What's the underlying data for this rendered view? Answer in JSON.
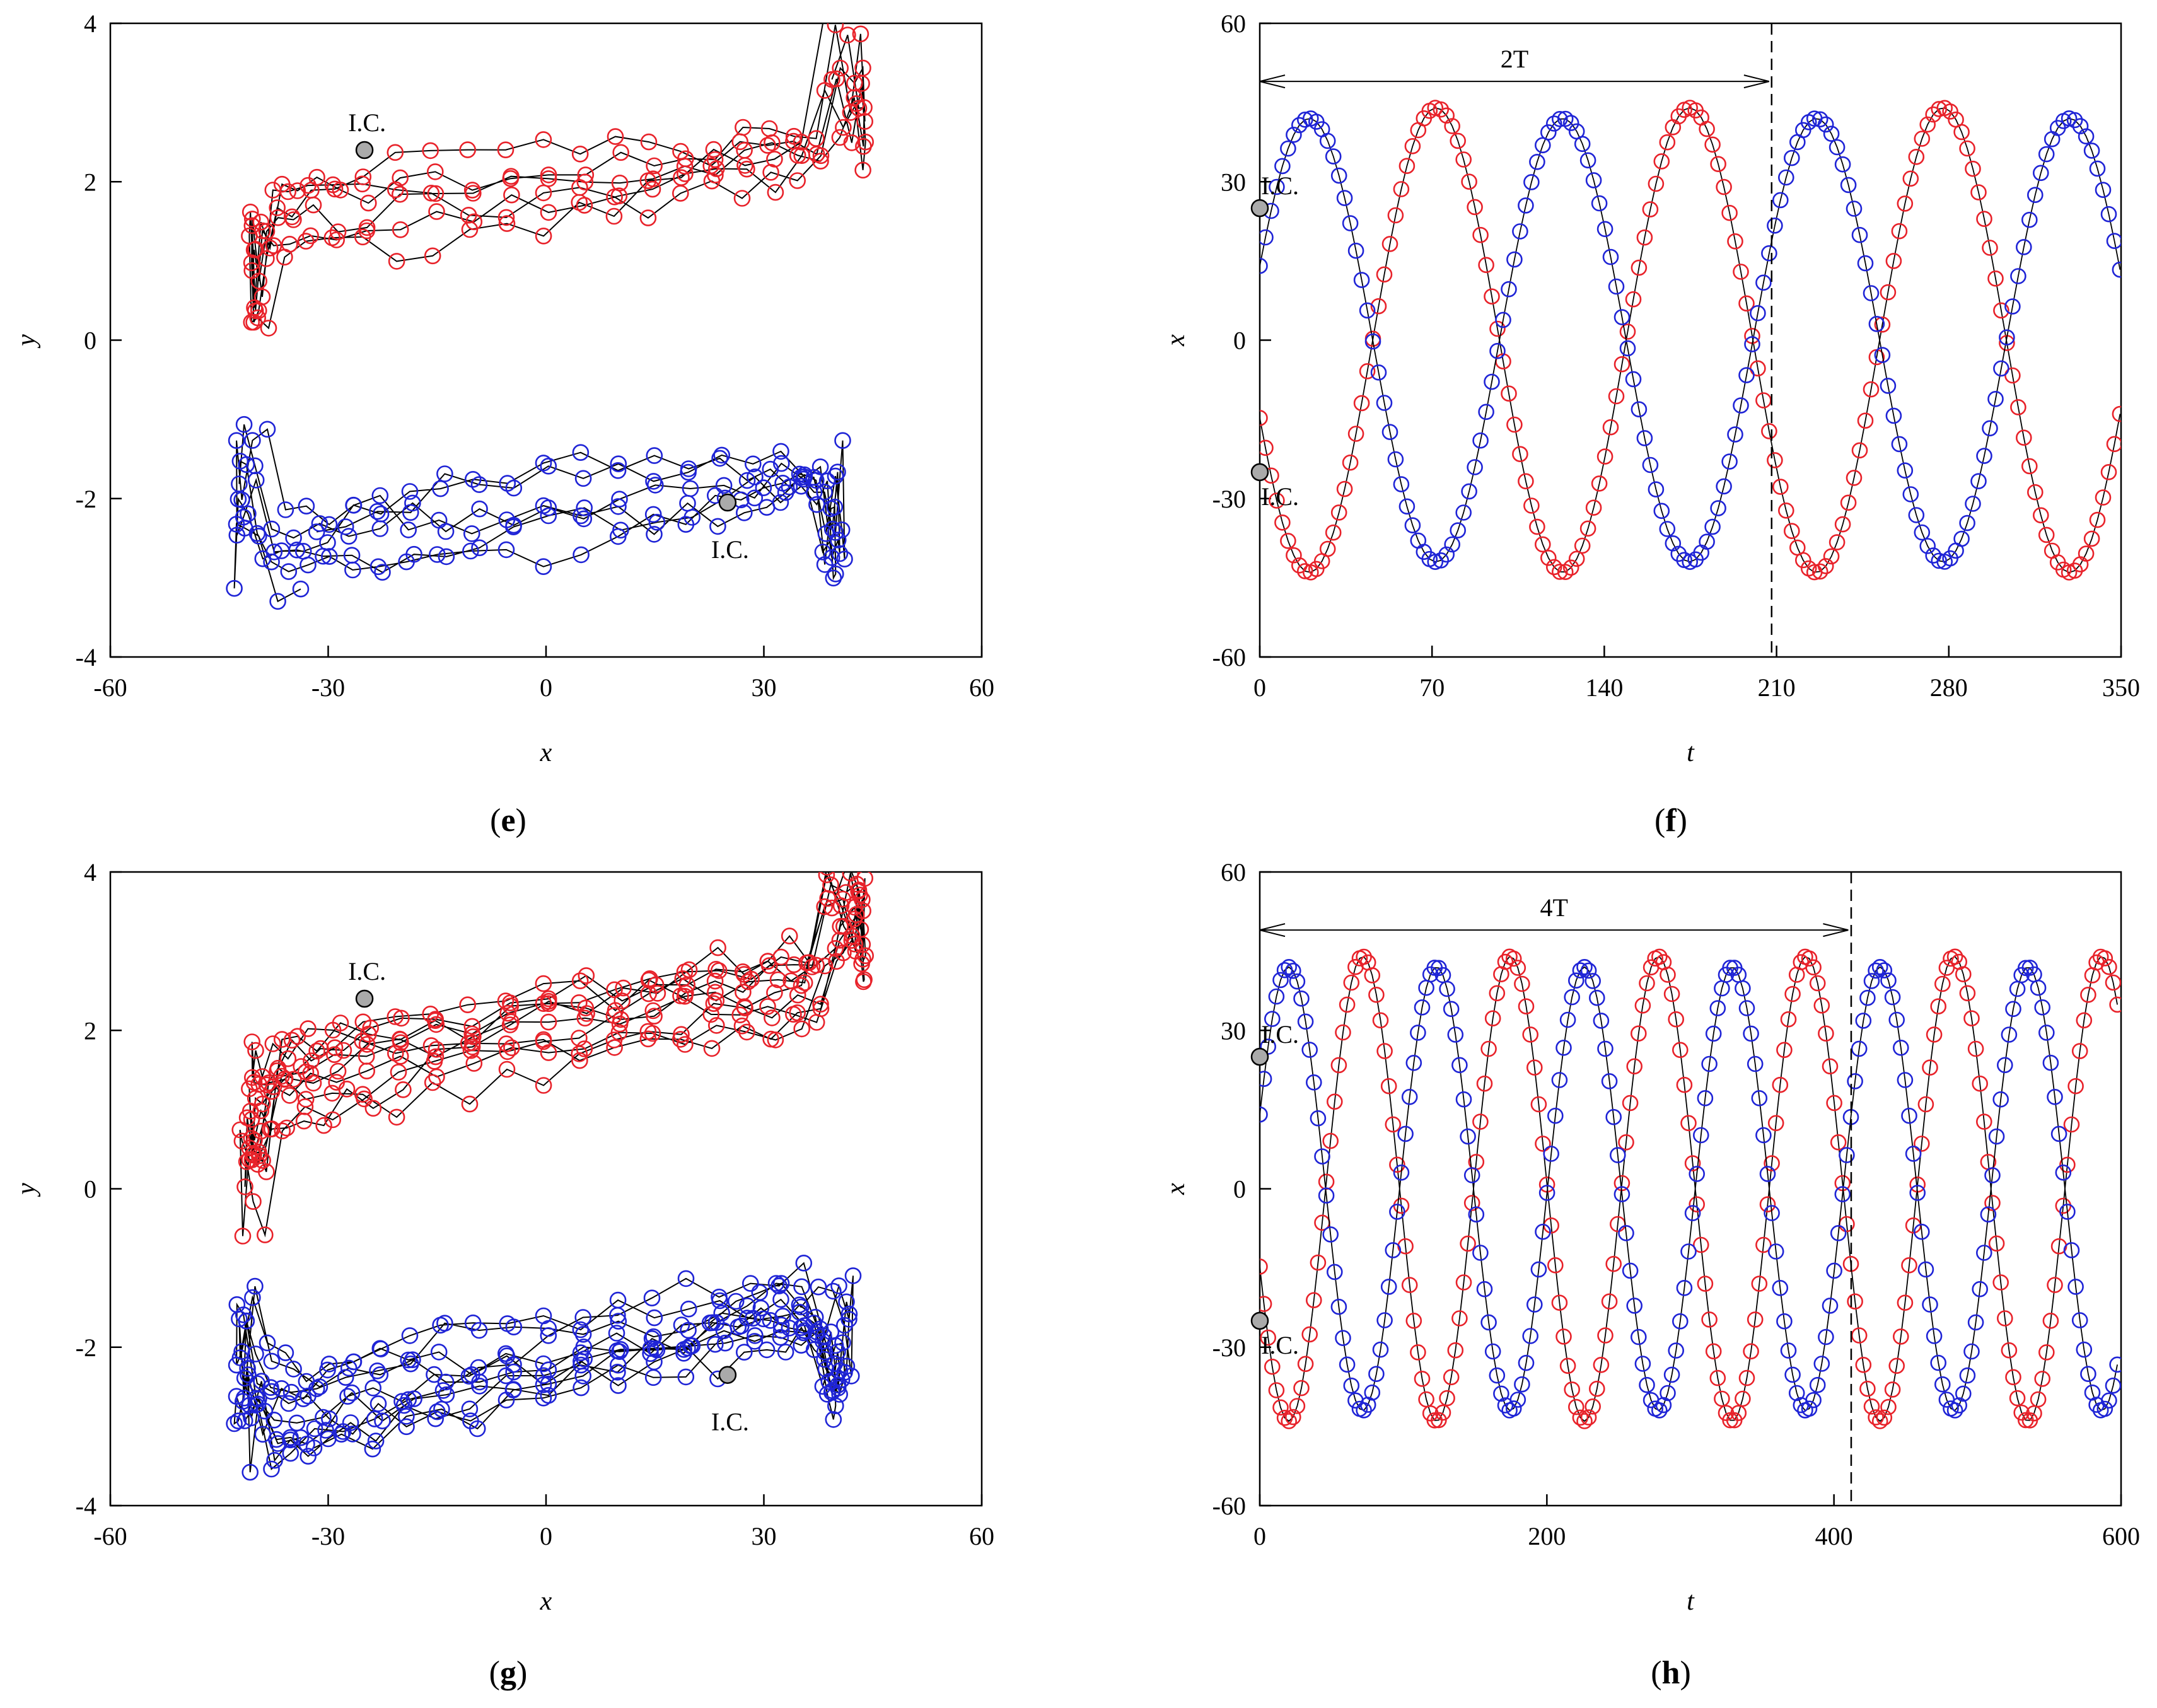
{
  "colors": {
    "red_series": "#e8222a",
    "blue_series": "#1f24d6",
    "ic_marker": "#aaaaaa",
    "connector": "#000000"
  },
  "chart_data": [
    {
      "id": "e",
      "type": "scatter",
      "panel_label": "e",
      "xlabel": "x",
      "ylabel": "y",
      "xlim": [
        -60,
        60
      ],
      "ylim": [
        -4,
        4
      ],
      "xticks": [
        "-60",
        "-30",
        "0",
        "30",
        "60"
      ],
      "yticks": [
        "-4",
        "-2",
        "0",
        "2",
        "4"
      ],
      "grid": false,
      "kind": "phase",
      "phase": {
        "cycles": 3,
        "samples_per_cycle": 52,
        "amplitude_red": 44,
        "amplitude_blue": 43,
        "offset_red": 2.0,
        "offset_blue": -2.2,
        "slope": 0.018
      },
      "initial_conditions": [
        {
          "label": "I.C.",
          "x": -25,
          "y": 2.4,
          "label_pos": "above"
        },
        {
          "label": "I.C.",
          "x": 25,
          "y": -2.05,
          "label_pos": "below"
        }
      ]
    },
    {
      "id": "f",
      "type": "scatter",
      "panel_label": "f",
      "xlabel": "t",
      "ylabel": "x",
      "xlim": [
        0,
        350
      ],
      "ylim": [
        -60,
        60
      ],
      "xticks": [
        "0",
        "70",
        "140",
        "210",
        "280",
        "350"
      ],
      "yticks": [
        "-60",
        "-30",
        "0",
        "30",
        "60"
      ],
      "grid": false,
      "kind": "time",
      "time": {
        "period": 103,
        "dt": 2.3,
        "amplitude_red": 44,
        "amplitude_blue": 42,
        "phase_offset": 0.62
      },
      "period_marker": {
        "label": "2T",
        "t_start": 0,
        "t_end": 207,
        "x": 49,
        "dashed_t": 208
      },
      "initial_conditions": [
        {
          "label": "I.C.",
          "t": 0,
          "x": 25
        },
        {
          "label": "I.C.",
          "t": 0,
          "x": -25
        }
      ]
    },
    {
      "id": "g",
      "type": "scatter",
      "panel_label": "g",
      "xlabel": "x",
      "ylabel": "y",
      "xlim": [
        -60,
        60
      ],
      "ylim": [
        -4,
        4
      ],
      "xticks": [
        "-60",
        "-30",
        "0",
        "30",
        "60"
      ],
      "yticks": [
        "-4",
        "-2",
        "0",
        "2",
        "4"
      ],
      "grid": false,
      "kind": "phase",
      "phase": {
        "cycles": 5,
        "samples_per_cycle": 52,
        "amplitude_red": 44,
        "amplitude_blue": 43,
        "offset_red": 2.0,
        "offset_blue": -2.2,
        "slope": 0.018
      },
      "initial_conditions": [
        {
          "label": "I.C.",
          "x": -25,
          "y": 2.4,
          "label_pos": "above"
        },
        {
          "label": "I.C.",
          "x": 25,
          "y": -2.35,
          "label_pos": "below"
        }
      ]
    },
    {
      "id": "h",
      "type": "scatter",
      "panel_label": "h",
      "xlabel": "t",
      "ylabel": "x",
      "xlim": [
        0,
        600
      ],
      "ylim": [
        -60,
        60
      ],
      "xticks": [
        "0",
        "200",
        "400",
        "600"
      ],
      "yticks": [
        "-60",
        "-30",
        "0",
        "30",
        "60"
      ],
      "grid": false,
      "kind": "time",
      "time": {
        "period": 103,
        "dt": 2.9,
        "amplitude_red": 44,
        "amplitude_blue": 42,
        "phase_offset": 0.62
      },
      "period_marker": {
        "label": "4T",
        "t_start": 0,
        "t_end": 410,
        "x": 49,
        "dashed_t": 412
      },
      "initial_conditions": [
        {
          "label": "I.C.",
          "t": 0,
          "x": 25
        },
        {
          "label": "I.C.",
          "t": 0,
          "x": -25
        }
      ]
    }
  ]
}
